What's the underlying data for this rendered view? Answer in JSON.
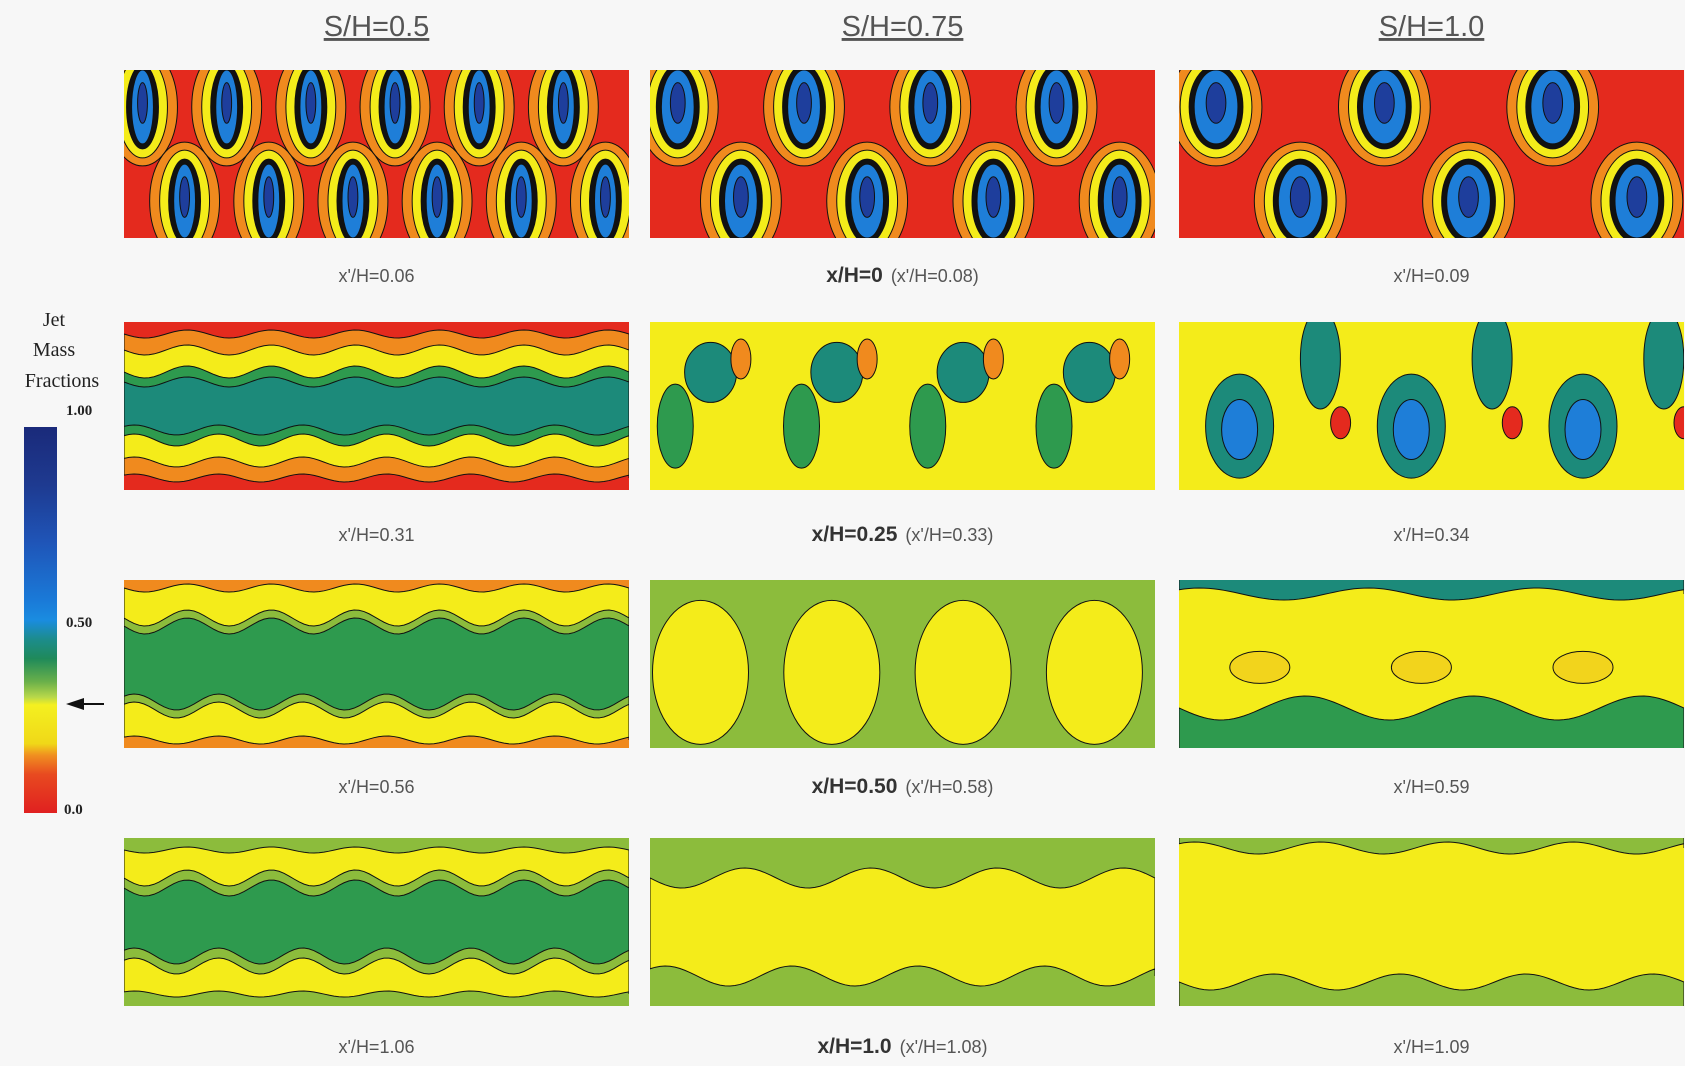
{
  "columns": [
    "S/H=0.5",
    "S/H=0.75",
    "S/H=1.0"
  ],
  "legend": {
    "title": [
      "Jet",
      "Mass",
      "Fractions"
    ],
    "labels": [
      "1.00",
      "0.50",
      "0.0"
    ]
  },
  "rows": [
    {
      "x_label": "x/H=0",
      "captions": [
        "x'/H=0.06",
        "(x'/H=0.08)",
        "x'/H=0.09"
      ]
    },
    {
      "x_label": "x/H=0.25",
      "captions": [
        "x'/H=0.31",
        "(x'/H=0.33)",
        "x'/H=0.34"
      ]
    },
    {
      "x_label": "x/H=0.50",
      "captions": [
        "x'/H=0.56",
        "(x'/H=0.58)",
        "x'/H=0.59"
      ]
    },
    {
      "x_label": "x/H=1.0",
      "captions": [
        "x'/H=1.06",
        "(x'/H=1.08)",
        "x'/H=1.09"
      ]
    }
  ]
}
